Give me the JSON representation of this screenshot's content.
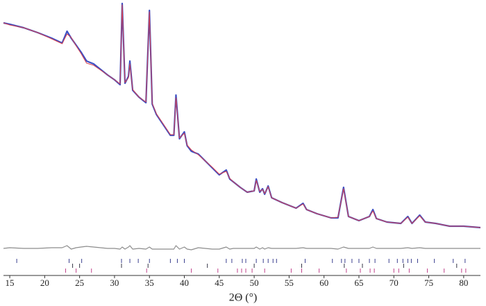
{
  "chart_data": {
    "type": "line",
    "x_label": "2Θ (°)",
    "xlim": [
      14.1,
      82.4
    ],
    "xticks": [
      15,
      20,
      25,
      30,
      35,
      40,
      45,
      50,
      55,
      60,
      65,
      70,
      75,
      80
    ],
    "ylim": [
      0,
      397
    ],
    "x": [
      14.1,
      15,
      17,
      19,
      21,
      22.5,
      23.2,
      23.8,
      24.5,
      25.2,
      26,
      27,
      28,
      29,
      30,
      30.8,
      31.1,
      31.5,
      32,
      32.2,
      32.6,
      33.5,
      34.5,
      35,
      35.4,
      36,
      37,
      38,
      38.5,
      38.8,
      39.3,
      40,
      40.4,
      41,
      42,
      43,
      44,
      45,
      46,
      46.5,
      47,
      48,
      49,
      50,
      50.3,
      50.8,
      51.2,
      51.5,
      52,
      52.5,
      54,
      56,
      57,
      57.5,
      59,
      61,
      62,
      62.8,
      63.5,
      65,
      66.5,
      67,
      67.5,
      69,
      71,
      72,
      72.6,
      73.7,
      74.5,
      76,
      78,
      80,
      82.4
    ],
    "series": [
      {
        "color": "#3b4fc4",
        "width": 2.2,
        "values": [
          364,
          362,
          357,
          350,
          342,
          335,
          352,
          342,
          332,
          322,
          309,
          305,
          297,
          289,
          282,
          275,
          392,
          277,
          287,
          309,
          267,
          257,
          249,
          382,
          247,
          232,
          217,
          202,
          202,
          260,
          197,
          207,
          187,
          179,
          175,
          165,
          155,
          145,
          152,
          139,
          135,
          127,
          120,
          122,
          139,
          120,
          125,
          117,
          129,
          112,
          105,
          97,
          104,
          95,
          89,
          83,
          83,
          127,
          85,
          79,
          85,
          95,
          82,
          77,
          75,
          85,
          75,
          87,
          77,
          75,
          71,
          71,
          69
        ]
      },
      {
        "color": "#d8404e",
        "width": 1,
        "values": [
          364,
          361,
          357,
          350,
          341,
          334,
          348,
          343,
          331,
          320,
          306,
          303,
          296,
          289,
          282,
          276,
          390,
          278,
          285,
          305,
          268,
          257,
          250,
          380,
          248,
          233,
          218,
          203,
          203,
          256,
          198,
          205,
          188,
          181,
          174,
          165,
          156,
          146,
          150,
          140,
          135,
          127,
          120,
          122,
          137,
          121,
          124,
          118,
          128,
          112,
          105,
          97,
          103,
          95,
          89,
          83,
          84,
          125,
          85,
          79,
          85,
          93,
          82,
          77,
          75,
          84,
          75,
          86,
          77,
          75,
          71,
          71,
          69
        ]
      },
      {
        "color": "#8c8c8c",
        "width": 1.2,
        "values": [
          39,
          40,
          39,
          39,
          40,
          40,
          43,
          38,
          40,
          41,
          42,
          41,
          40,
          39,
          39,
          38,
          41,
          38,
          41,
          43,
          38,
          39,
          38,
          41,
          38,
          38,
          38,
          38,
          38,
          43,
          38,
          41,
          38,
          37,
          40,
          39,
          38,
          38,
          41,
          38,
          39,
          39,
          39,
          39,
          41,
          38,
          40,
          38,
          40,
          39,
          39,
          39,
          40,
          39,
          39,
          39,
          38,
          41,
          39,
          39,
          39,
          41,
          39,
          39,
          39,
          40,
          39,
          40,
          39,
          39,
          39,
          39,
          39
        ]
      }
    ],
    "reflections": [
      {
        "color": "#3a3f8f",
        "positions": [
          16,
          23.5,
          25.3,
          31,
          32.2,
          33.4,
          35,
          38,
          39,
          40,
          46,
          46.8,
          48.3,
          48.8,
          50.3,
          51.3,
          52,
          52.7,
          53.2,
          57.3,
          61.2,
          62.5,
          63,
          64,
          65,
          66.5,
          67.3,
          69.3,
          70.5,
          71.3,
          72,
          72.5,
          73.4,
          75.8,
          78.5,
          80.2
        ]
      },
      {
        "color": "#333344",
        "positions": [
          24,
          25,
          31,
          34.8,
          43.3,
          50,
          56.8,
          62.9,
          65.5,
          71.4,
          79
        ]
      },
      {
        "color": "#c0408a",
        "positions": [
          23,
          24.5,
          26.7,
          34.6,
          41,
          44.8,
          47.6,
          48.2,
          48.8,
          49.7,
          51.5,
          55.3,
          56.8,
          59.3,
          63.2,
          65.2,
          66.6,
          67.2,
          70,
          70.7,
          72.2,
          74.8,
          77.2,
          79.7,
          80.3
        ]
      }
    ]
  }
}
